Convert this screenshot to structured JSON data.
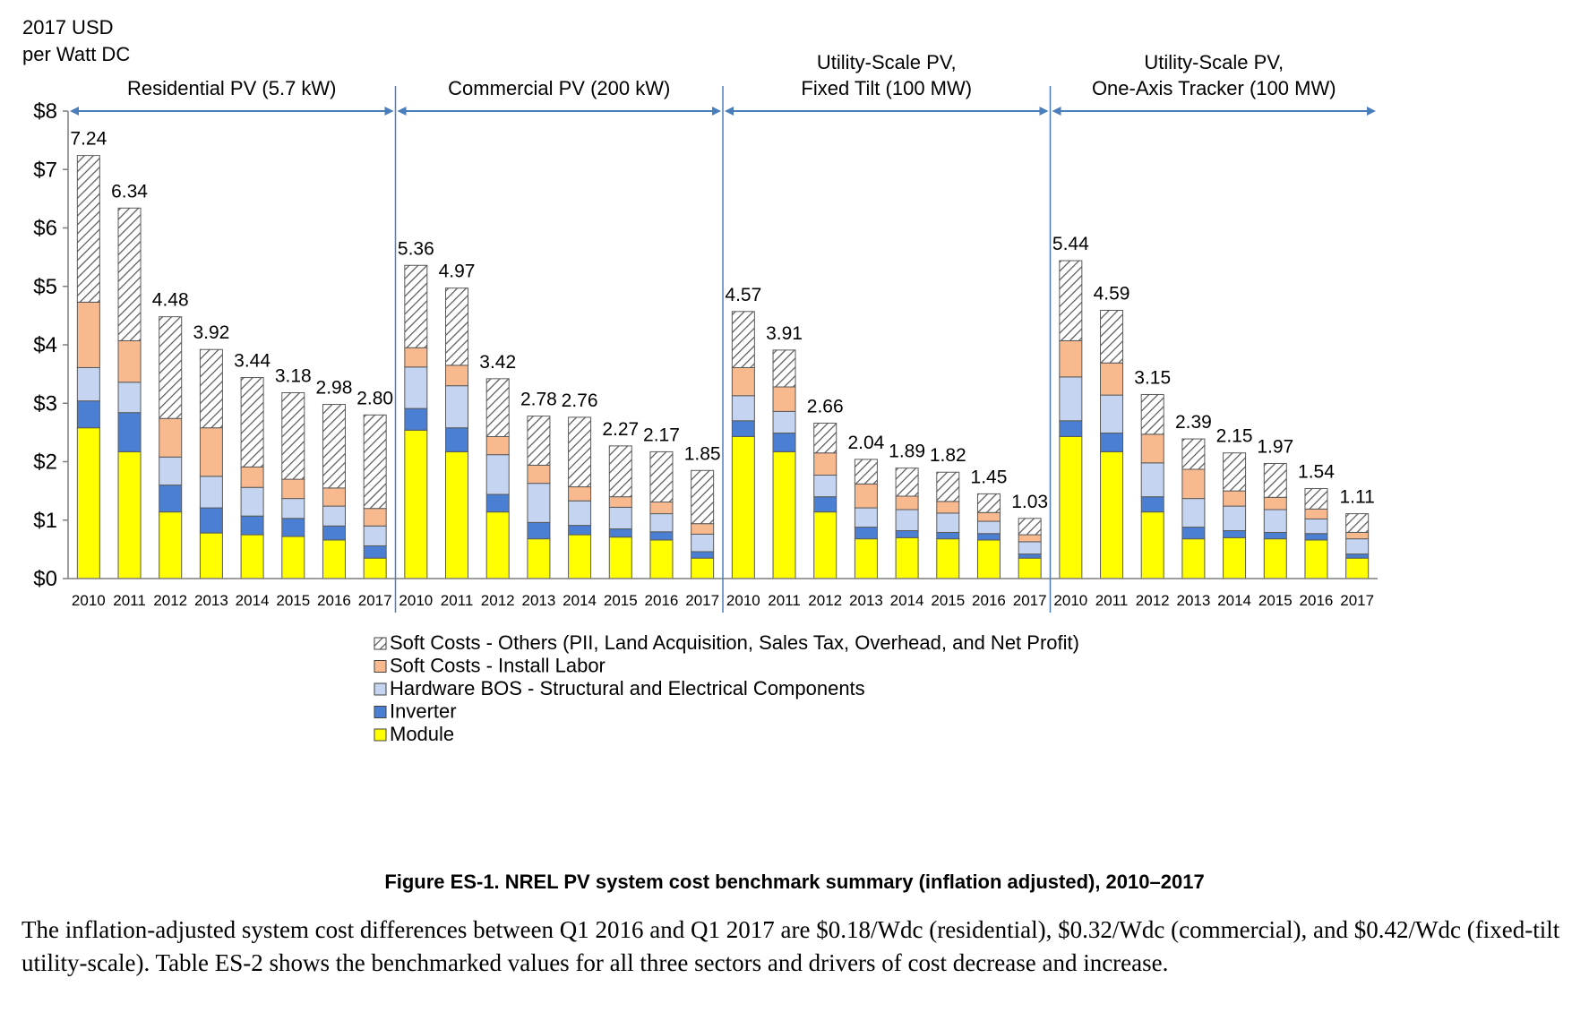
{
  "chart_data": {
    "type": "bar",
    "stacked": true,
    "ylabel": "2017 USD\nper Watt DC",
    "ylim": [
      0,
      8
    ],
    "yticks": [
      "$0",
      "$1",
      "$2",
      "$3",
      "$4",
      "$5",
      "$6",
      "$7",
      "$8"
    ],
    "ytick_values": [
      0,
      1,
      2,
      3,
      4,
      5,
      6,
      7,
      8
    ],
    "categories": [
      "2010",
      "2011",
      "2012",
      "2013",
      "2014",
      "2015",
      "2016",
      "2017"
    ],
    "groups": [
      {
        "name": "Residential PV (5.7 kW)",
        "title_lines": [
          "Residential PV (5.7 kW)"
        ],
        "totals": [
          7.24,
          6.34,
          4.48,
          3.92,
          3.44,
          3.18,
          2.98,
          2.8
        ],
        "total_labels": [
          "7.24",
          "6.34",
          "4.48",
          "3.92",
          "3.44",
          "3.18",
          "2.98",
          "2.80"
        ],
        "module": [
          2.58,
          2.17,
          1.14,
          0.78,
          0.75,
          0.72,
          0.66,
          0.35
        ],
        "inverter": [
          0.46,
          0.67,
          0.46,
          0.43,
          0.32,
          0.31,
          0.24,
          0.21
        ],
        "hardware_bos": [
          0.57,
          0.52,
          0.48,
          0.54,
          0.49,
          0.34,
          0.34,
          0.34
        ],
        "install_labor": [
          1.12,
          0.71,
          0.66,
          0.83,
          0.35,
          0.33,
          0.31,
          0.3
        ],
        "soft_others": [
          2.51,
          2.27,
          1.74,
          1.34,
          1.53,
          1.48,
          1.43,
          1.6
        ]
      },
      {
        "name": "Commercial PV (200 kW)",
        "title_lines": [
          "Commercial PV (200 kW)"
        ],
        "totals": [
          5.36,
          4.97,
          3.42,
          2.78,
          2.76,
          2.27,
          2.17,
          1.85
        ],
        "total_labels": [
          "5.36",
          "4.97",
          "3.42",
          "2.78",
          "2.76",
          "2.27",
          "2.17",
          "1.85"
        ],
        "module": [
          2.54,
          2.17,
          1.14,
          0.68,
          0.75,
          0.71,
          0.66,
          0.35
        ],
        "inverter": [
          0.37,
          0.41,
          0.3,
          0.28,
          0.16,
          0.14,
          0.14,
          0.11
        ],
        "hardware_bos": [
          0.71,
          0.72,
          0.68,
          0.67,
          0.42,
          0.37,
          0.31,
          0.3
        ],
        "install_labor": [
          0.33,
          0.35,
          0.31,
          0.31,
          0.24,
          0.18,
          0.2,
          0.18
        ],
        "soft_others": [
          1.41,
          1.32,
          0.99,
          0.84,
          1.19,
          0.87,
          0.86,
          0.91
        ]
      },
      {
        "name": "Utility-Scale PV, Fixed Tilt (100 MW)",
        "title_lines": [
          "Utility-Scale PV,",
          "Fixed Tilt (100 MW)"
        ],
        "totals": [
          4.57,
          3.91,
          2.66,
          2.04,
          1.89,
          1.82,
          1.45,
          1.03
        ],
        "total_labels": [
          "4.57",
          "3.91",
          "2.66",
          "2.04",
          "1.89",
          "1.82",
          "1.45",
          "1.03"
        ],
        "module": [
          2.43,
          2.17,
          1.14,
          0.68,
          0.7,
          0.68,
          0.66,
          0.35
        ],
        "inverter": [
          0.27,
          0.32,
          0.26,
          0.2,
          0.12,
          0.11,
          0.11,
          0.07
        ],
        "hardware_bos": [
          0.43,
          0.37,
          0.37,
          0.33,
          0.36,
          0.33,
          0.21,
          0.21
        ],
        "install_labor": [
          0.48,
          0.42,
          0.38,
          0.41,
          0.23,
          0.2,
          0.15,
          0.12
        ],
        "soft_others": [
          0.96,
          0.63,
          0.51,
          0.42,
          0.48,
          0.5,
          0.32,
          0.28
        ]
      },
      {
        "name": "Utility-Scale PV, One-Axis Tracker (100 MW)",
        "title_lines": [
          "Utility-Scale PV,",
          "One-Axis Tracker (100 MW)"
        ],
        "totals": [
          5.44,
          4.59,
          3.15,
          2.39,
          2.15,
          1.97,
          1.54,
          1.11
        ],
        "total_labels": [
          "5.44",
          "4.59",
          "3.15",
          "2.39",
          "2.15",
          "1.97",
          "1.54",
          "1.11"
        ],
        "module": [
          2.43,
          2.17,
          1.14,
          0.68,
          0.7,
          0.68,
          0.66,
          0.35
        ],
        "inverter": [
          0.27,
          0.32,
          0.26,
          0.2,
          0.12,
          0.11,
          0.11,
          0.07
        ],
        "hardware_bos": [
          0.75,
          0.65,
          0.58,
          0.49,
          0.42,
          0.39,
          0.25,
          0.26
        ],
        "install_labor": [
          0.62,
          0.55,
          0.49,
          0.5,
          0.26,
          0.21,
          0.17,
          0.11
        ],
        "soft_others": [
          1.37,
          0.9,
          0.68,
          0.52,
          0.65,
          0.58,
          0.35,
          0.32
        ]
      }
    ],
    "legend": [
      {
        "key": "soft_others",
        "label": "Soft Costs - Others (PII, Land Acquisition, Sales Tax, Overhead, and Net Profit)",
        "color": "#ffffff",
        "hatch": true
      },
      {
        "key": "install_labor",
        "label": "Soft Costs - Install Labor",
        "color": "#f9b98f"
      },
      {
        "key": "hardware_bos",
        "label": "Hardware BOS - Structural and Electrical Components",
        "color": "#c5d5f1"
      },
      {
        "key": "inverter",
        "label": "Inverter",
        "color": "#4a7fd4"
      },
      {
        "key": "module",
        "label": "Module",
        "color": "#ffff00"
      }
    ],
    "stack_order": [
      "module",
      "inverter",
      "hardware_bos",
      "install_labor",
      "soft_others"
    ],
    "arrow_color": "#4a7ebb"
  },
  "caption": "Figure ES-1. NREL PV system cost benchmark summary (inflation adjusted), 2010–2017",
  "body_text": "The inflation-adjusted system cost differences between Q1 2016 and Q1 2017 are $0.18/Wdc (residential), $0.32/Wdc (commercial), and $0.42/Wdc (fixed-tilt utility-scale). Table ES-2 shows the benchmarked values for all three sectors and drivers of cost decrease and increase."
}
